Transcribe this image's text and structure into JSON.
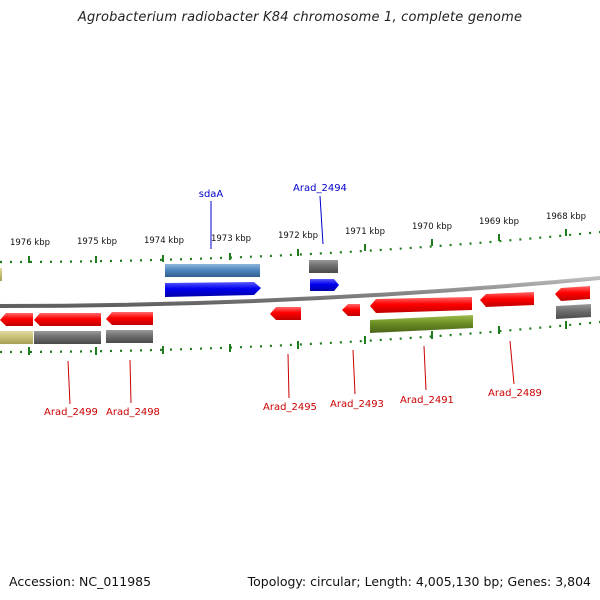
{
  "title": "Agrobacterium radiobacter K84 chromosome 1, complete genome",
  "footer": {
    "accession": "Accession: NC_011985",
    "topology": "Topology: circular; Length: 4,005,130 bp; Genes: 3,804"
  },
  "colors": {
    "backbone": "#8a8a8a",
    "ruler": "#1e7b1e",
    "red_gene": "#ff0000",
    "blue_gene": "#0000ee",
    "steel_gene": "#4f87be",
    "gray_gene": "#707070",
    "olive_gene": "#6b8e23",
    "khaki_gene": "#c8c27a",
    "label_red": "#cc0000",
    "label_blue": "#0000cc"
  },
  "ruler_ticks": [
    "1976 kbp",
    "1975 kbp",
    "1974 kbp",
    "1973 kbp",
    "1972 kbp",
    "1971 kbp",
    "1970 kbp",
    "1969 kbp",
    "1968 kbp"
  ],
  "gene_labels": {
    "sdaA": "sdaA",
    "arad_2494": "Arad_2494",
    "arad_2499": "Arad_2499",
    "arad_2498": "Arad_2498",
    "arad_2495": "Arad_2495",
    "arad_2493": "Arad_2493",
    "arad_2491": "Arad_2491",
    "arad_2489": "Arad_2489"
  }
}
